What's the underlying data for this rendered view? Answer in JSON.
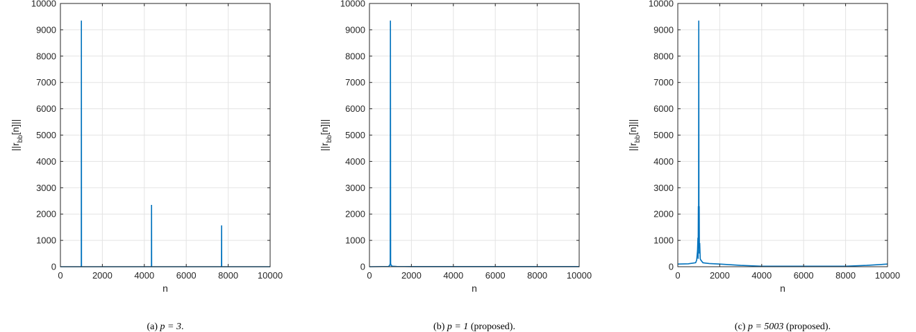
{
  "chart_data": [
    {
      "type": "line",
      "title": "",
      "xlabel": "n",
      "ylabel": "||r_bb[n]||",
      "ylabel_base": "||r",
      "ylabel_sub": "bb",
      "ylabel_tail": "[n]||",
      "caption": "(a)  p = 3.",
      "caption_prefix": "(a) ",
      "caption_math": "p = 3",
      "caption_suffix": ".",
      "xlim": [
        0,
        10000
      ],
      "ylim": [
        0,
        10000
      ],
      "xticks": [
        0,
        2000,
        4000,
        6000,
        8000,
        10000
      ],
      "yticks": [
        0,
        1000,
        2000,
        3000,
        4000,
        5000,
        6000,
        7000,
        8000,
        9000,
        10000
      ],
      "grid": true,
      "color": "#0072BD",
      "series": [
        {
          "x": [
            0,
            980,
            995,
            1000,
            1005,
            1020,
            4330,
            4340,
            4345,
            4350,
            4360,
            7670,
            7680,
            7685,
            7690,
            7700,
            10000
          ],
          "y": [
            0,
            0,
            30,
            9350,
            30,
            0,
            0,
            20,
            2350,
            20,
            0,
            0,
            15,
            1570,
            15,
            0,
            0
          ]
        }
      ]
    },
    {
      "type": "line",
      "title": "",
      "xlabel": "n",
      "ylabel": "||r_bb[n]||",
      "ylabel_base": "||r",
      "ylabel_sub": "bb",
      "ylabel_tail": "[n]||",
      "caption": "(b)  p = 1 (proposed).",
      "caption_prefix": "(b) ",
      "caption_math": "p = 1",
      "caption_suffix": " (proposed).",
      "xlim": [
        0,
        10000
      ],
      "ylim": [
        0,
        10000
      ],
      "xticks": [
        0,
        2000,
        4000,
        6000,
        8000,
        10000
      ],
      "yticks": [
        0,
        1000,
        2000,
        3000,
        4000,
        5000,
        6000,
        7000,
        8000,
        9000,
        10000
      ],
      "grid": true,
      "color": "#0072BD",
      "series": [
        {
          "x": [
            0,
            900,
            960,
            990,
            1000,
            1010,
            1040,
            1100,
            1300,
            2000,
            10000
          ],
          "y": [
            0,
            10,
            40,
            120,
            9350,
            120,
            40,
            20,
            10,
            5,
            5
          ]
        }
      ]
    },
    {
      "type": "line",
      "title": "",
      "xlabel": "n",
      "ylabel": "||r_bb[n]||",
      "ylabel_base": "||r",
      "ylabel_sub": "bb",
      "ylabel_tail": "[n]||",
      "caption": "(c)  p = 5003 (proposed).",
      "caption_prefix": "(c) ",
      "caption_math": "p = 5003",
      "caption_suffix": " (proposed).",
      "xlim": [
        0,
        10000
      ],
      "ylim": [
        0,
        10000
      ],
      "xticks": [
        0,
        2000,
        4000,
        6000,
        8000,
        10000
      ],
      "yticks": [
        0,
        1000,
        2000,
        3000,
        4000,
        5000,
        6000,
        7000,
        8000,
        9000,
        10000
      ],
      "grid": true,
      "color": "#0072BD",
      "series": [
        {
          "x": [
            0,
            500,
            850,
            900,
            940,
            960,
            970,
            980,
            990,
            1000,
            1010,
            1020,
            1030,
            1045,
            1070,
            1100,
            1200,
            1500,
            2000,
            3000,
            4000,
            8000,
            9000,
            10000
          ],
          "y": [
            100,
            110,
            150,
            250,
            600,
            1100,
            300,
            2300,
            800,
            9350,
            700,
            2300,
            500,
            900,
            300,
            250,
            150,
            120,
            100,
            50,
            20,
            20,
            50,
            100
          ]
        }
      ]
    }
  ]
}
